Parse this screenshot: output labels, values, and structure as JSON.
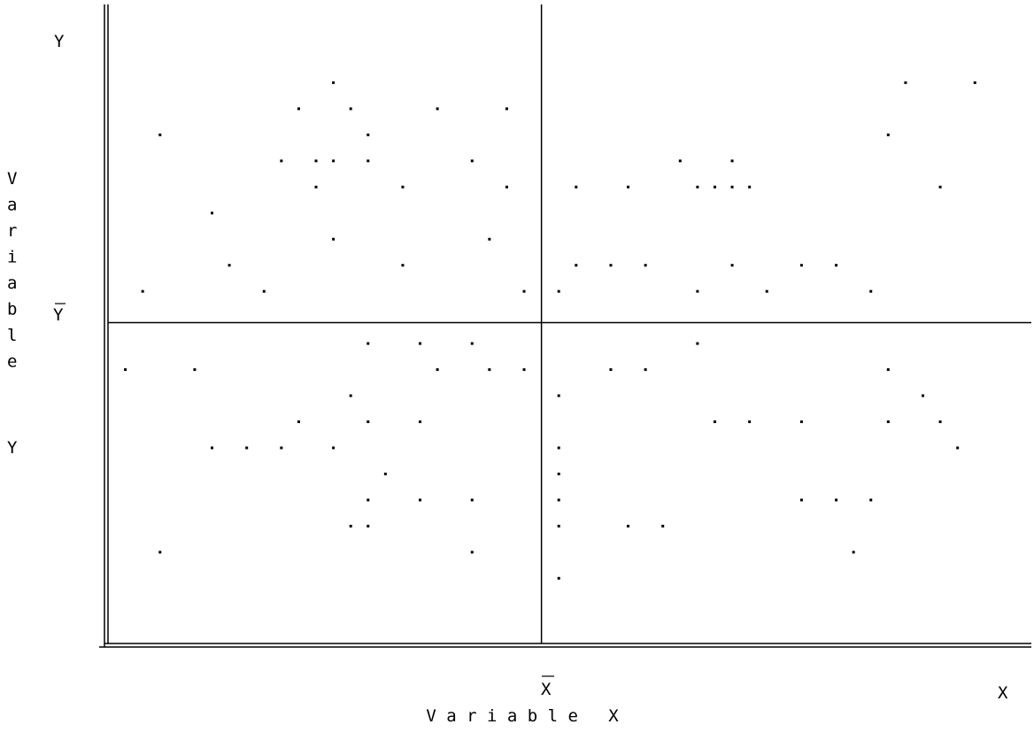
{
  "chart_data": {
    "type": "scatter",
    "title": "",
    "xlabel": "V a r i a b l e   X",
    "ylabel_chars": [
      "V",
      "a",
      "r",
      "i",
      "a",
      "b",
      "l",
      "e"
    ],
    "y_axis_end_label": "Y",
    "y_axis_lower_label": "Y",
    "x_axis_end_label": "X",
    "x_mean_label": "X",
    "y_mean_label": "Y",
    "grid": false,
    "legend": "none",
    "mean_lines": {
      "x_mean": 12.5,
      "y_mean": 12.3
    },
    "xlim": [
      0,
      26.5
    ],
    "ylim": [
      0,
      24.5
    ],
    "points": [
      [
        6.5,
        21.5
      ],
      [
        5.5,
        20.5
      ],
      [
        7,
        20.5
      ],
      [
        9.5,
        20.5
      ],
      [
        11.5,
        20.5
      ],
      [
        1.5,
        19.5
      ],
      [
        7.5,
        19.5
      ],
      [
        5,
        18.5
      ],
      [
        6,
        18.5
      ],
      [
        6.5,
        18.5
      ],
      [
        7.5,
        18.5
      ],
      [
        10.5,
        18.5
      ],
      [
        6,
        17.5
      ],
      [
        8.5,
        17.5
      ],
      [
        11.5,
        17.5
      ],
      [
        3,
        16.5
      ],
      [
        6.5,
        15.5
      ],
      [
        11,
        15.5
      ],
      [
        3.5,
        14.5
      ],
      [
        8.5,
        14.5
      ],
      [
        1,
        13.5
      ],
      [
        4.5,
        13.5
      ],
      [
        12,
        13.5
      ],
      [
        0.5,
        10.5
      ],
      [
        2.5,
        10.5
      ],
      [
        9.5,
        10.5
      ],
      [
        11,
        10.5
      ],
      [
        12,
        10.5
      ],
      [
        7.5,
        11.5
      ],
      [
        9,
        11.5
      ],
      [
        10.5,
        11.5
      ],
      [
        7,
        9.5
      ],
      [
        5.5,
        8.5
      ],
      [
        7.5,
        8.5
      ],
      [
        9,
        8.5
      ],
      [
        3,
        7.5
      ],
      [
        4,
        7.5
      ],
      [
        5,
        7.5
      ],
      [
        6.5,
        7.5
      ],
      [
        8,
        6.5
      ],
      [
        7.5,
        5.5
      ],
      [
        9,
        5.5
      ],
      [
        10.5,
        5.5
      ],
      [
        7,
        4.5
      ],
      [
        7.5,
        4.5
      ],
      [
        1.5,
        3.5
      ],
      [
        10.5,
        3.5
      ],
      [
        23,
        21.5
      ],
      [
        25,
        21.5
      ],
      [
        22.5,
        19.5
      ],
      [
        16.5,
        18.5
      ],
      [
        18,
        18.5
      ],
      [
        13.5,
        17.5
      ],
      [
        15,
        17.5
      ],
      [
        17,
        17.5
      ],
      [
        17.5,
        17.5
      ],
      [
        18,
        17.5
      ],
      [
        18.5,
        17.5
      ],
      [
        24,
        17.5
      ],
      [
        13.5,
        14.5
      ],
      [
        14.5,
        14.5
      ],
      [
        15.5,
        14.5
      ],
      [
        18,
        14.5
      ],
      [
        20,
        14.5
      ],
      [
        21,
        14.5
      ],
      [
        13,
        13.5
      ],
      [
        17,
        13.5
      ],
      [
        19,
        13.5
      ],
      [
        22,
        13.5
      ],
      [
        17,
        11.5
      ],
      [
        14.5,
        10.5
      ],
      [
        15.5,
        10.5
      ],
      [
        22.5,
        10.5
      ],
      [
        13,
        9.5
      ],
      [
        23.5,
        9.5
      ],
      [
        17.5,
        8.5
      ],
      [
        18.5,
        8.5
      ],
      [
        20,
        8.5
      ],
      [
        22.5,
        8.5
      ],
      [
        24,
        8.5
      ],
      [
        24.5,
        7.5
      ],
      [
        13,
        7.5
      ],
      [
        13,
        6.5
      ],
      [
        13,
        5.5
      ],
      [
        13,
        4.5
      ],
      [
        20,
        5.5
      ],
      [
        21,
        5.5
      ],
      [
        22,
        5.5
      ],
      [
        15,
        4.5
      ],
      [
        16,
        4.5
      ],
      [
        21.5,
        3.5
      ],
      [
        13,
        2.5
      ]
    ]
  }
}
